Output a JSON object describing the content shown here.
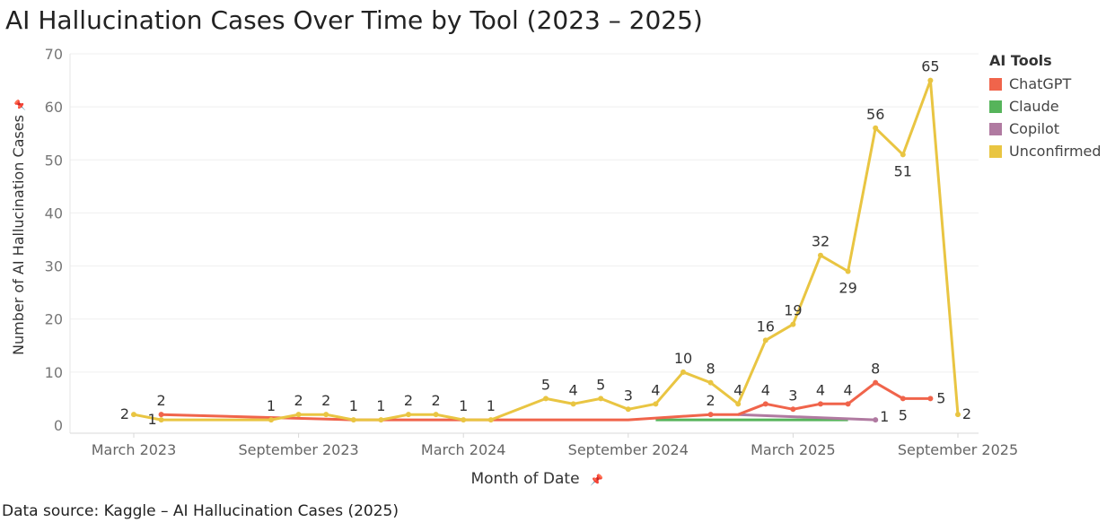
{
  "title": "AI Hallucination Cases Over Time by Tool (2023 – 2025)",
  "source": "Data source: Kaggle – AI Hallucination Cases (2025)",
  "chart_data": {
    "type": "line",
    "xlabel": "Month of Date",
    "ylabel": "Number of AI Hallucination Cases",
    "ylim": [
      0,
      70
    ],
    "y_ticks": [
      0,
      10,
      20,
      30,
      40,
      50,
      60,
      70
    ],
    "x_range": [
      "2023-01",
      "2025-10"
    ],
    "x_ticks": [
      {
        "label": "March 2023",
        "date": "2023-03"
      },
      {
        "label": "September 2023",
        "date": "2023-09"
      },
      {
        "label": "March 2024",
        "date": "2024-03"
      },
      {
        "label": "September 2024",
        "date": "2024-09"
      },
      {
        "label": "March 2025",
        "date": "2025-03"
      },
      {
        "label": "September 2025",
        "date": "2025-09"
      }
    ],
    "grid": true,
    "legend_title": "AI Tools",
    "legend_position": "right",
    "series": [
      {
        "name": "Unconfirmed",
        "color": "#e9c542",
        "points": [
          {
            "x": "2023-03",
            "y": 2,
            "label": "2"
          },
          {
            "x": "2023-04",
            "y": 1,
            "label": "1"
          },
          {
            "x": "2023-08",
            "y": 1,
            "label": "1"
          },
          {
            "x": "2023-09",
            "y": 2,
            "label": "2"
          },
          {
            "x": "2023-10",
            "y": 2,
            "label": "2"
          },
          {
            "x": "2023-11",
            "y": 1,
            "label": "1"
          },
          {
            "x": "2023-12",
            "y": 1,
            "label": "1"
          },
          {
            "x": "2024-01",
            "y": 2,
            "label": "2"
          },
          {
            "x": "2024-02",
            "y": 2,
            "label": "2"
          },
          {
            "x": "2024-03",
            "y": 1,
            "label": "1"
          },
          {
            "x": "2024-04",
            "y": 1,
            "label": "1"
          },
          {
            "x": "2024-06",
            "y": 5,
            "label": "5"
          },
          {
            "x": "2024-07",
            "y": 4,
            "label": "4"
          },
          {
            "x": "2024-08",
            "y": 5,
            "label": "5"
          },
          {
            "x": "2024-09",
            "y": 3,
            "label": "3"
          },
          {
            "x": "2024-10",
            "y": 4,
            "label": "4"
          },
          {
            "x": "2024-11",
            "y": 10,
            "label": "10"
          },
          {
            "x": "2024-12",
            "y": 8,
            "label": "8"
          },
          {
            "x": "2025-01",
            "y": 4,
            "label": "4"
          },
          {
            "x": "2025-02",
            "y": 16,
            "label": "16"
          },
          {
            "x": "2025-03",
            "y": 19,
            "label": "19"
          },
          {
            "x": "2025-04",
            "y": 32,
            "label": "32"
          },
          {
            "x": "2025-05",
            "y": 29,
            "label": "29"
          },
          {
            "x": "2025-06",
            "y": 56,
            "label": "56"
          },
          {
            "x": "2025-07",
            "y": 51,
            "label": "51"
          },
          {
            "x": "2025-08",
            "y": 65,
            "label": "65"
          },
          {
            "x": "2025-09",
            "y": 2,
            "label": "2"
          }
        ]
      },
      {
        "name": "ChatGPT",
        "color": "#f0644b",
        "points": [
          {
            "x": "2023-04",
            "y": 2,
            "label": "2"
          },
          {
            "x": "2023-11",
            "y": 1
          },
          {
            "x": "2024-04",
            "y": 1
          },
          {
            "x": "2024-09",
            "y": 1
          },
          {
            "x": "2024-12",
            "y": 2,
            "label": "2"
          },
          {
            "x": "2025-01",
            "y": 2
          },
          {
            "x": "2025-02",
            "y": 4,
            "label": "4"
          },
          {
            "x": "2025-03",
            "y": 3,
            "label": "3"
          },
          {
            "x": "2025-04",
            "y": 4,
            "label": "4"
          },
          {
            "x": "2025-05",
            "y": 4,
            "label": "4"
          },
          {
            "x": "2025-06",
            "y": 8,
            "label": "8"
          },
          {
            "x": "2025-07",
            "y": 5,
            "label": "5"
          },
          {
            "x": "2025-08",
            "y": 5,
            "label": "5"
          }
        ]
      },
      {
        "name": "Claude",
        "color": "#56b45b",
        "points": [
          {
            "x": "2024-10",
            "y": 1
          },
          {
            "x": "2025-05",
            "y": 1
          }
        ]
      },
      {
        "name": "Copilot",
        "color": "#b07aa1",
        "points": [
          {
            "x": "2025-01",
            "y": 2
          },
          {
            "x": "2025-06",
            "y": 1,
            "label": "1"
          }
        ]
      }
    ]
  }
}
